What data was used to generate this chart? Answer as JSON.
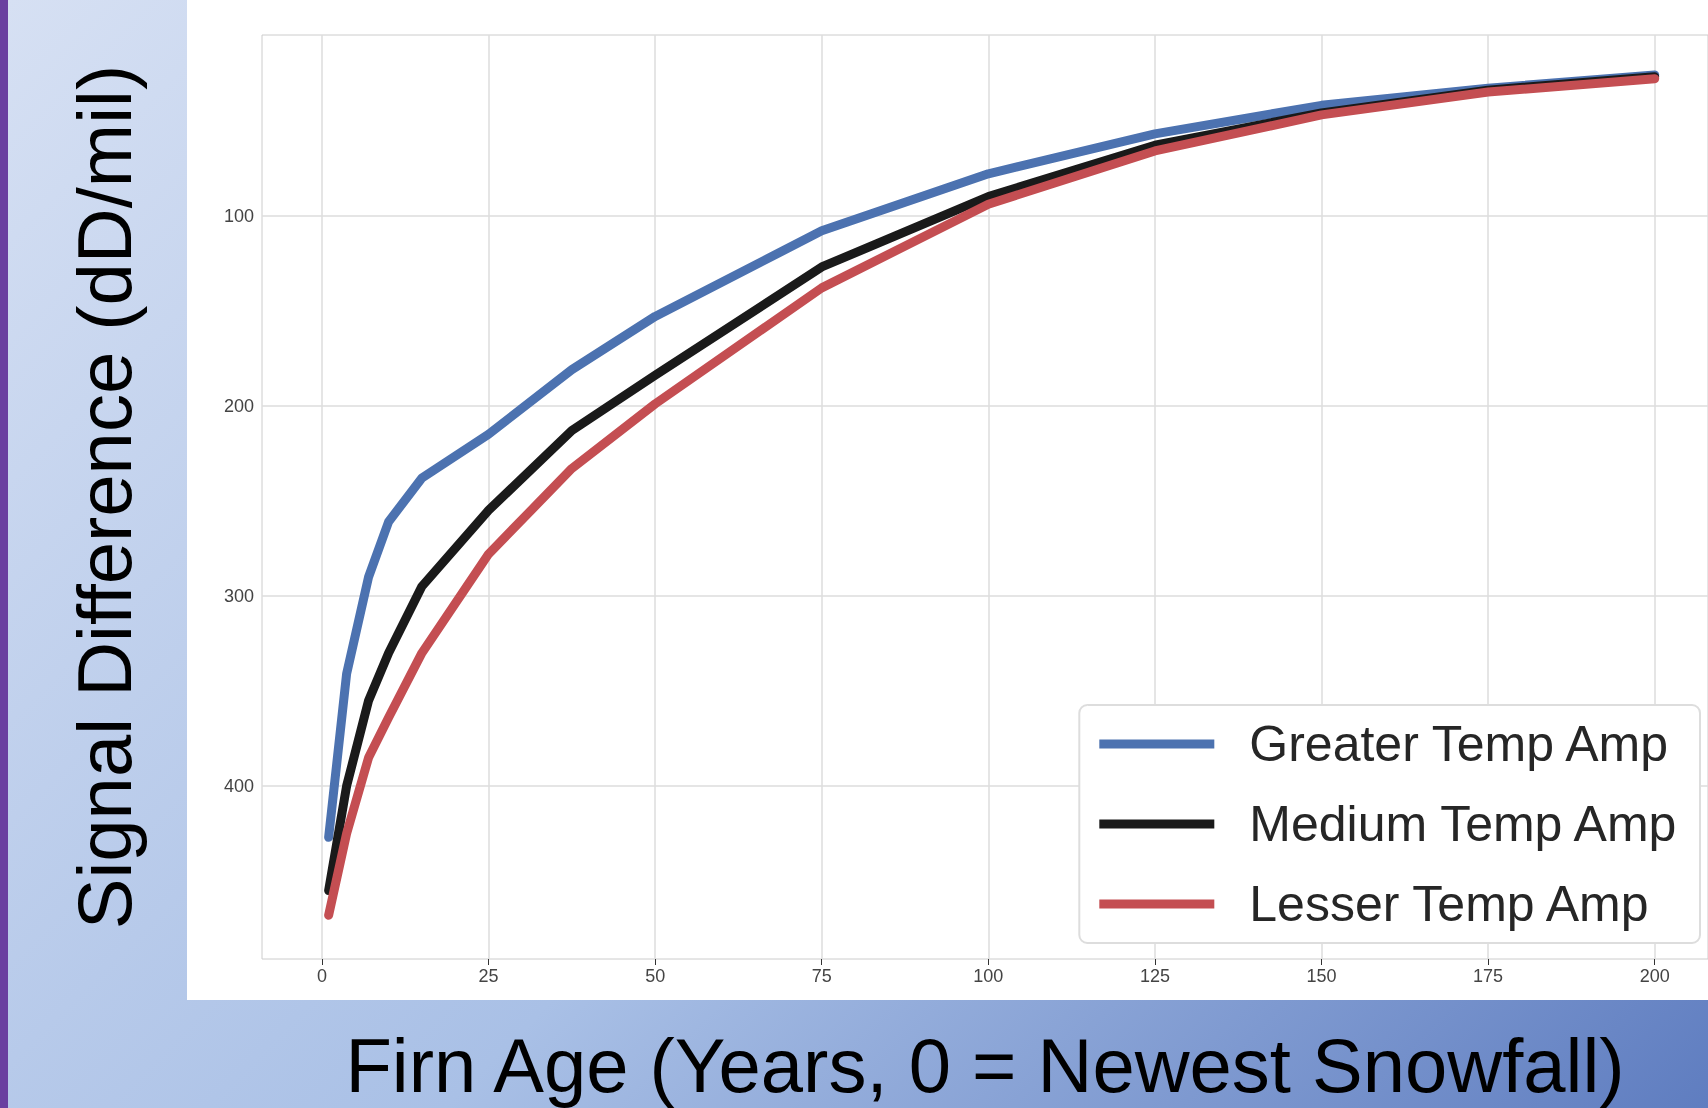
{
  "chart_data": {
    "type": "line",
    "xlabel": "Firn Age (Years, 0 = Newest Snowfall)",
    "ylabel": "Signal Difference (dD/mil)",
    "xlim": [
      -9,
      208
    ],
    "xticks": [
      0,
      25,
      50,
      75,
      100,
      125,
      150,
      175,
      200
    ],
    "ylim": [
      491,
      5
    ],
    "yticks": [
      100,
      200,
      300,
      400
    ],
    "grid": true,
    "legend": "bottom right",
    "line_style": "solid",
    "marker": "none",
    "x": [
      1,
      3.7,
      7,
      10,
      15,
      25,
      37.5,
      50,
      75,
      100,
      125,
      150,
      175,
      200
    ],
    "series": [
      {
        "name": "Greater Temp Amp",
        "color": "#4c72b0",
        "values": [
          427,
          341,
          290,
          261,
          238,
          215,
          181,
          153,
          108,
          78,
          57,
          42,
          33,
          26
        ]
      },
      {
        "name": "Medium Temp Amp",
        "color": "#1a1a1a",
        "values": [
          455,
          400,
          355,
          330,
          295,
          255,
          213,
          184,
          127,
          90,
          63,
          46,
          34,
          27
        ]
      },
      {
        "name": "Lesser Temp Amp",
        "color": "#c44e52",
        "values": [
          468,
          425,
          385,
          364,
          330,
          278,
          233,
          199,
          138,
          94,
          66,
          47,
          35,
          28
        ]
      }
    ]
  }
}
